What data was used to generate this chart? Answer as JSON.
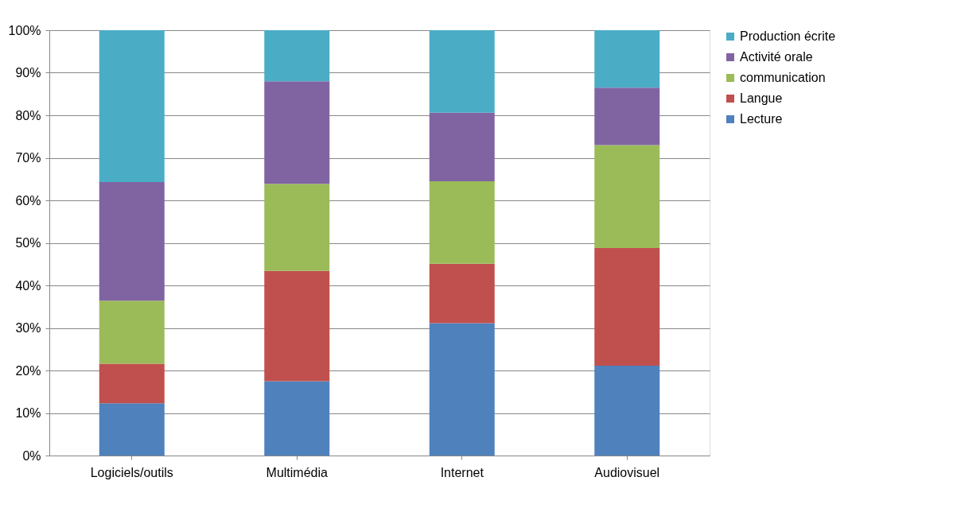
{
  "chart_data": {
    "type": "bar",
    "stacked": true,
    "categories": [
      "Logiciels/outils",
      "Multimédia",
      "Internet",
      "Audiovisuel"
    ],
    "series": [
      {
        "name": "Lecture",
        "color": "#4f81bd",
        "values": [
          12.3,
          17.5,
          31.1,
          21.1
        ]
      },
      {
        "name": "Langue",
        "color": "#c0504d",
        "values": [
          9.3,
          25.9,
          14.0,
          27.7
        ]
      },
      {
        "name": "communication",
        "color": "#9bbb59",
        "values": [
          14.8,
          20.5,
          19.4,
          24.2
        ]
      },
      {
        "name": "Activité orale",
        "color": "#8064a2",
        "values": [
          27.9,
          24.1,
          16.1,
          13.5
        ]
      },
      {
        "name": "Production écrite",
        "color": "#4bacc6",
        "values": [
          35.7,
          12.0,
          19.4,
          13.5
        ]
      }
    ],
    "ylim": [
      0,
      100
    ],
    "yticks": [
      {
        "value": 0,
        "label": "0%"
      },
      {
        "value": 10,
        "label": "10%"
      },
      {
        "value": 20,
        "label": "20%"
      },
      {
        "value": 30,
        "label": "30%"
      },
      {
        "value": 40,
        "label": "40%"
      },
      {
        "value": 50,
        "label": "50%"
      },
      {
        "value": 60,
        "label": "60%"
      },
      {
        "value": 70,
        "label": "70%"
      },
      {
        "value": 80,
        "label": "80%"
      },
      {
        "value": 90,
        "label": "90%"
      },
      {
        "value": 100,
        "label": "100%"
      }
    ],
    "grid": "y",
    "legend": "right"
  }
}
